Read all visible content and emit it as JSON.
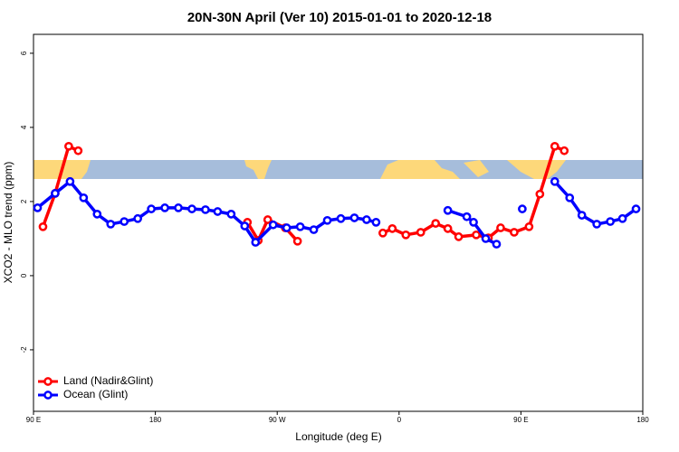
{
  "chart_data": {
    "type": "line",
    "title": "20N-30N April (Ver 10)   2015-01-01 to 2020-12-18",
    "x_label": "Longitude (deg E)",
    "y_label": "XCO2 - MLO trend (ppm)",
    "xlim": [
      90,
      540
    ],
    "xticks": [
      {
        "value": 90,
        "label": "90 E"
      },
      180,
      {
        "value": 270,
        "label": "90 W"
      },
      {
        "value": 360,
        "label": "0"
      },
      {
        "value": 450,
        "label": "90 E"
      },
      {
        "value": 540,
        "label": "180"
      }
    ],
    "ylim": [
      -3.66,
      6.51
    ],
    "yticks": [
      -2,
      0,
      2,
      4,
      6
    ],
    "legend": "bottom-left",
    "series": [
      {
        "name": "Land (Nadir&Glint)",
        "color": "#ff0000",
        "x": [
          97,
          106,
          116,
          123,
          null,
          248,
          256,
          263,
          276,
          285,
          null,
          348,
          355,
          365,
          376,
          387,
          396,
          404,
          417,
          426,
          435,
          445,
          456,
          464,
          475,
          482
        ],
        "values": [
          1.32,
          2.22,
          3.49,
          3.37,
          null,
          1.44,
          0.95,
          1.51,
          1.29,
          0.93,
          null,
          1.15,
          1.27,
          1.1,
          1.17,
          1.41,
          1.27,
          1.05,
          1.1,
          1.02,
          1.29,
          1.17,
          1.32,
          2.2,
          3.49,
          3.37
        ]
      },
      {
        "name": "Ocean (Glint)",
        "color": "#0000ff",
        "x": [
          93,
          106,
          117,
          127,
          137,
          147,
          157,
          167,
          177,
          187,
          197,
          207,
          217,
          226,
          236,
          246,
          254,
          267,
          277,
          287,
          297,
          307,
          317,
          327,
          336,
          343,
          null,
          396,
          410,
          415,
          424,
          432,
          null,
          451,
          null,
          475,
          486,
          495,
          506,
          516,
          525,
          535
        ],
        "values": [
          1.83,
          2.22,
          2.54,
          2.1,
          1.66,
          1.39,
          1.46,
          1.54,
          1.8,
          1.83,
          1.83,
          1.8,
          1.78,
          1.73,
          1.66,
          1.34,
          0.9,
          1.37,
          1.29,
          1.32,
          1.24,
          1.49,
          1.54,
          1.56,
          1.51,
          1.44,
          null,
          1.76,
          1.59,
          1.44,
          1.0,
          0.85,
          null,
          1.8,
          null,
          2.54,
          2.1,
          1.63,
          1.39,
          1.46,
          1.54,
          1.8
        ]
      }
    ]
  }
}
